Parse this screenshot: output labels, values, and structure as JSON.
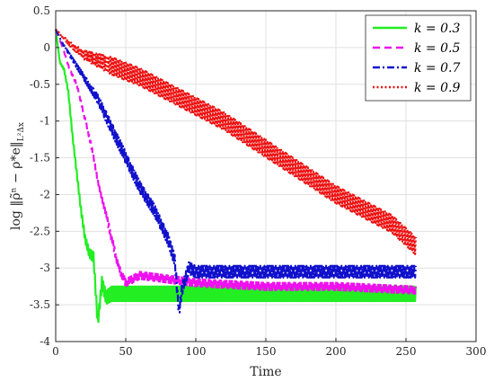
{
  "chart_data": {
    "type": "line",
    "title": "",
    "xlabel": "Time",
    "ylabel": "log ‖ρ̃ⁿ − ρ*e‖",
    "ylabel_subscript": "L²Δx",
    "xlim": [
      0,
      300
    ],
    "ylim": [
      -4,
      0.5
    ],
    "xticks": [
      0,
      50,
      100,
      150,
      200,
      250,
      300
    ],
    "yticks": [
      -4,
      -3.5,
      -3,
      -2.5,
      -2,
      -1.5,
      -1,
      -0.5,
      0,
      0.5
    ],
    "grid": true,
    "legend_position": "top-right",
    "series": [
      {
        "name": "k = 0.3",
        "color": "#22ee22",
        "style": "solid",
        "x": [
          0,
          3,
          6,
          9,
          12,
          15,
          18,
          21,
          24,
          27,
          30,
          33,
          36,
          40,
          50,
          100,
          150,
          200,
          257
        ],
        "y": [
          0.25,
          -0.2,
          -0.3,
          -0.6,
          -1.2,
          -1.7,
          -2.2,
          -2.6,
          -2.8,
          -2.85,
          -3.75,
          -3.2,
          -3.4,
          -3.35,
          -3.35,
          -3.35,
          -3.35,
          -3.35,
          -3.35
        ],
        "oscillation_amplitude": 0.1
      },
      {
        "name": "k = 0.5",
        "color": "#ee11ee",
        "style": "dashed",
        "x": [
          0,
          5,
          10,
          15,
          20,
          25,
          30,
          35,
          40,
          45,
          50,
          60,
          100,
          150,
          200,
          257
        ],
        "y": [
          0.25,
          0.0,
          -0.3,
          -0.5,
          -0.9,
          -1.3,
          -1.8,
          -2.2,
          -2.6,
          -3.0,
          -3.2,
          -3.1,
          -3.2,
          -3.25,
          -3.25,
          -3.3
        ],
        "oscillation_amplitude": 0.05
      },
      {
        "name": "k = 0.7",
        "color": "#1111cc",
        "style": "dashdot",
        "x": [
          0,
          5,
          10,
          20,
          30,
          40,
          50,
          60,
          70,
          80,
          85,
          88,
          90,
          95,
          100,
          150,
          200,
          257
        ],
        "y": [
          0.25,
          0.05,
          -0.1,
          -0.4,
          -0.7,
          -1.1,
          -1.5,
          -1.9,
          -2.2,
          -2.6,
          -2.9,
          -3.6,
          -3.3,
          -3.0,
          -3.05,
          -3.05,
          -3.05,
          -3.05
        ],
        "oscillation_amplitude": 0.08
      },
      {
        "name": "k = 0.9",
        "color": "#ee1111",
        "style": "dotted",
        "x": [
          0,
          10,
          20,
          40,
          60,
          80,
          100,
          120,
          140,
          160,
          180,
          200,
          220,
          240,
          257
        ],
        "y": [
          0.25,
          0.05,
          -0.1,
          -0.25,
          -0.4,
          -0.6,
          -0.8,
          -1.0,
          -1.25,
          -1.5,
          -1.75,
          -2.0,
          -2.2,
          -2.4,
          -2.7
        ],
        "oscillation_amplitude": 0.12
      }
    ]
  }
}
